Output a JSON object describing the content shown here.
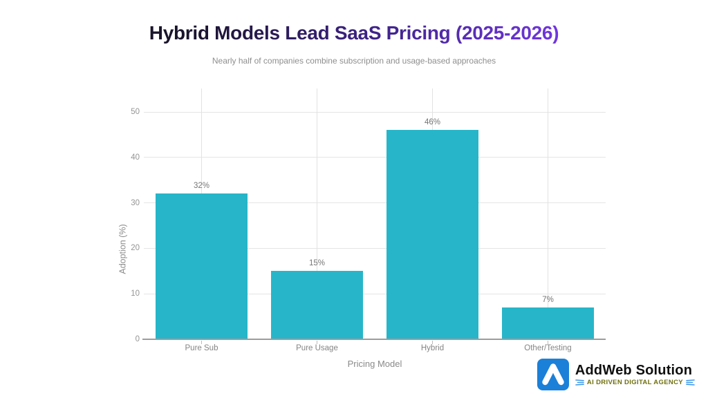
{
  "title": "Hybrid Models Lead SaaS Pricing (2025-2026)",
  "subtitle": "Nearly half of companies combine subscription and usage-based approaches",
  "chart_data": {
    "type": "bar",
    "title": "Hybrid Models Lead SaaS Pricing (2025-2026)",
    "subtitle": "Nearly half of companies combine subscription and usage-based approaches",
    "categories": [
      "Pure Sub",
      "Pure Usage",
      "Hybrid",
      "Other/Testing"
    ],
    "values": [
      32,
      15,
      46,
      7
    ],
    "value_labels": [
      "32%",
      "15%",
      "46%",
      "7%"
    ],
    "xlabel": "Pricing Model",
    "ylabel": "Adoption (%)",
    "ylim": [
      0,
      55
    ],
    "yticks": [
      0,
      10,
      20,
      30,
      40,
      50
    ],
    "grid": true,
    "legend": false,
    "bar_color": "#27b6c9"
  },
  "colors": {
    "title_gradient_start": "#141418",
    "title_gradient_end": "#7c3ff0",
    "bar": "#27b6c9",
    "gridline": "#e4e4e4",
    "axis_line": "#9c9c9c",
    "muted_text": "#8a8a8a",
    "logo_blue": "#1b80d8",
    "tagline_olive": "#6e6f10",
    "tagline_icon_blue": "#3b97ea"
  },
  "branding": {
    "name": "AddWeb Solution",
    "tagline": "AI DRIVEN DIGITAL AGENCY"
  }
}
